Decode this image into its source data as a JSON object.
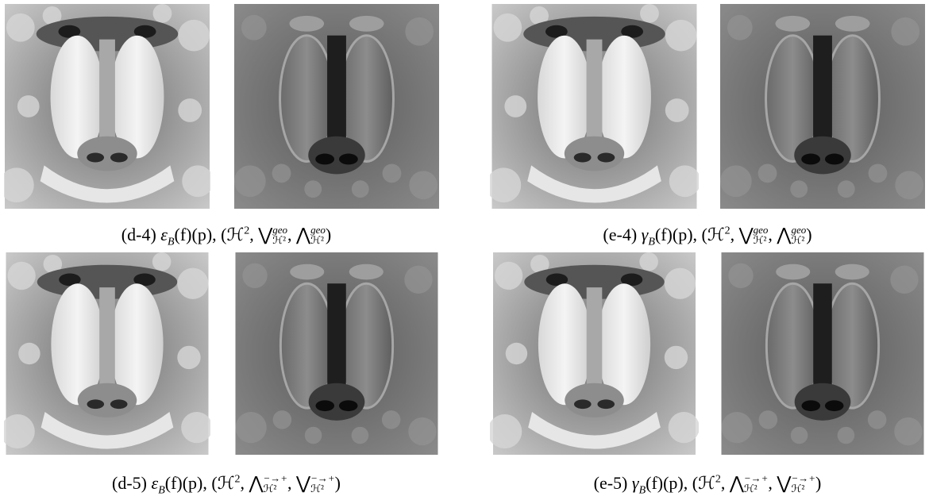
{
  "figure": {
    "captions": [
      {
        "segments": [
          {
            "kind": "text",
            "text": "(d-4) "
          },
          {
            "kind": "text",
            "text": "ε",
            "italic": true
          },
          {
            "kind": "sub",
            "text": "B",
            "italic": true
          },
          {
            "kind": "text",
            "text": "(f)(p), (ℋ"
          },
          {
            "kind": "sup",
            "text": "2"
          },
          {
            "kind": "text",
            "text": ", ⋁"
          },
          {
            "kind": "subsup",
            "sup": "geo",
            "sub": "ℋ²"
          },
          {
            "kind": "text",
            "text": ", ⋀"
          },
          {
            "kind": "subsup",
            "sup": "geo",
            "sub": "ℋ²"
          },
          {
            "kind": "text",
            "text": ")"
          }
        ]
      },
      {
        "segments": [
          {
            "kind": "text",
            "text": "(e-4) "
          },
          {
            "kind": "text",
            "text": "γ",
            "italic": true
          },
          {
            "kind": "sub",
            "text": "B",
            "italic": true
          },
          {
            "kind": "text",
            "text": "(f)(p), (ℋ"
          },
          {
            "kind": "sup",
            "text": "2"
          },
          {
            "kind": "text",
            "text": ", ⋁"
          },
          {
            "kind": "subsup",
            "sup": "geo",
            "sub": "ℋ²"
          },
          {
            "kind": "text",
            "text": ", ⋀"
          },
          {
            "kind": "subsup",
            "sup": "geo",
            "sub": "ℋ²"
          },
          {
            "kind": "text",
            "text": ")"
          }
        ]
      },
      {
        "segments": [
          {
            "kind": "text",
            "text": "(d-5) "
          },
          {
            "kind": "text",
            "text": "ε",
            "italic": true
          },
          {
            "kind": "sub",
            "text": "B",
            "italic": true
          },
          {
            "kind": "text",
            "text": "(f)(p), (ℋ"
          },
          {
            "kind": "sup",
            "text": "2"
          },
          {
            "kind": "text",
            "text": ", ⋀"
          },
          {
            "kind": "subsup",
            "sup": "−→+",
            "sub": "ℋ²"
          },
          {
            "kind": "text",
            "text": ", ⋁"
          },
          {
            "kind": "subsup",
            "sup": "−→+",
            "sub": "ℋ²"
          },
          {
            "kind": "text",
            "text": ")"
          }
        ]
      },
      {
        "segments": [
          {
            "kind": "text",
            "text": "(e-5) "
          },
          {
            "kind": "text",
            "text": "γ",
            "italic": true
          },
          {
            "kind": "sub",
            "text": "B",
            "italic": true
          },
          {
            "kind": "text",
            "text": "(f)(p), (ℋ"
          },
          {
            "kind": "sup",
            "text": "2"
          },
          {
            "kind": "text",
            "text": ", ⋀"
          },
          {
            "kind": "subsup",
            "sup": "−→+",
            "sub": "ℋ²"
          },
          {
            "kind": "text",
            "text": ", ⋁"
          },
          {
            "kind": "subsup",
            "sup": "−→+",
            "sub": "ℋ²"
          },
          {
            "kind": "text",
            "text": ")"
          }
        ]
      }
    ]
  }
}
